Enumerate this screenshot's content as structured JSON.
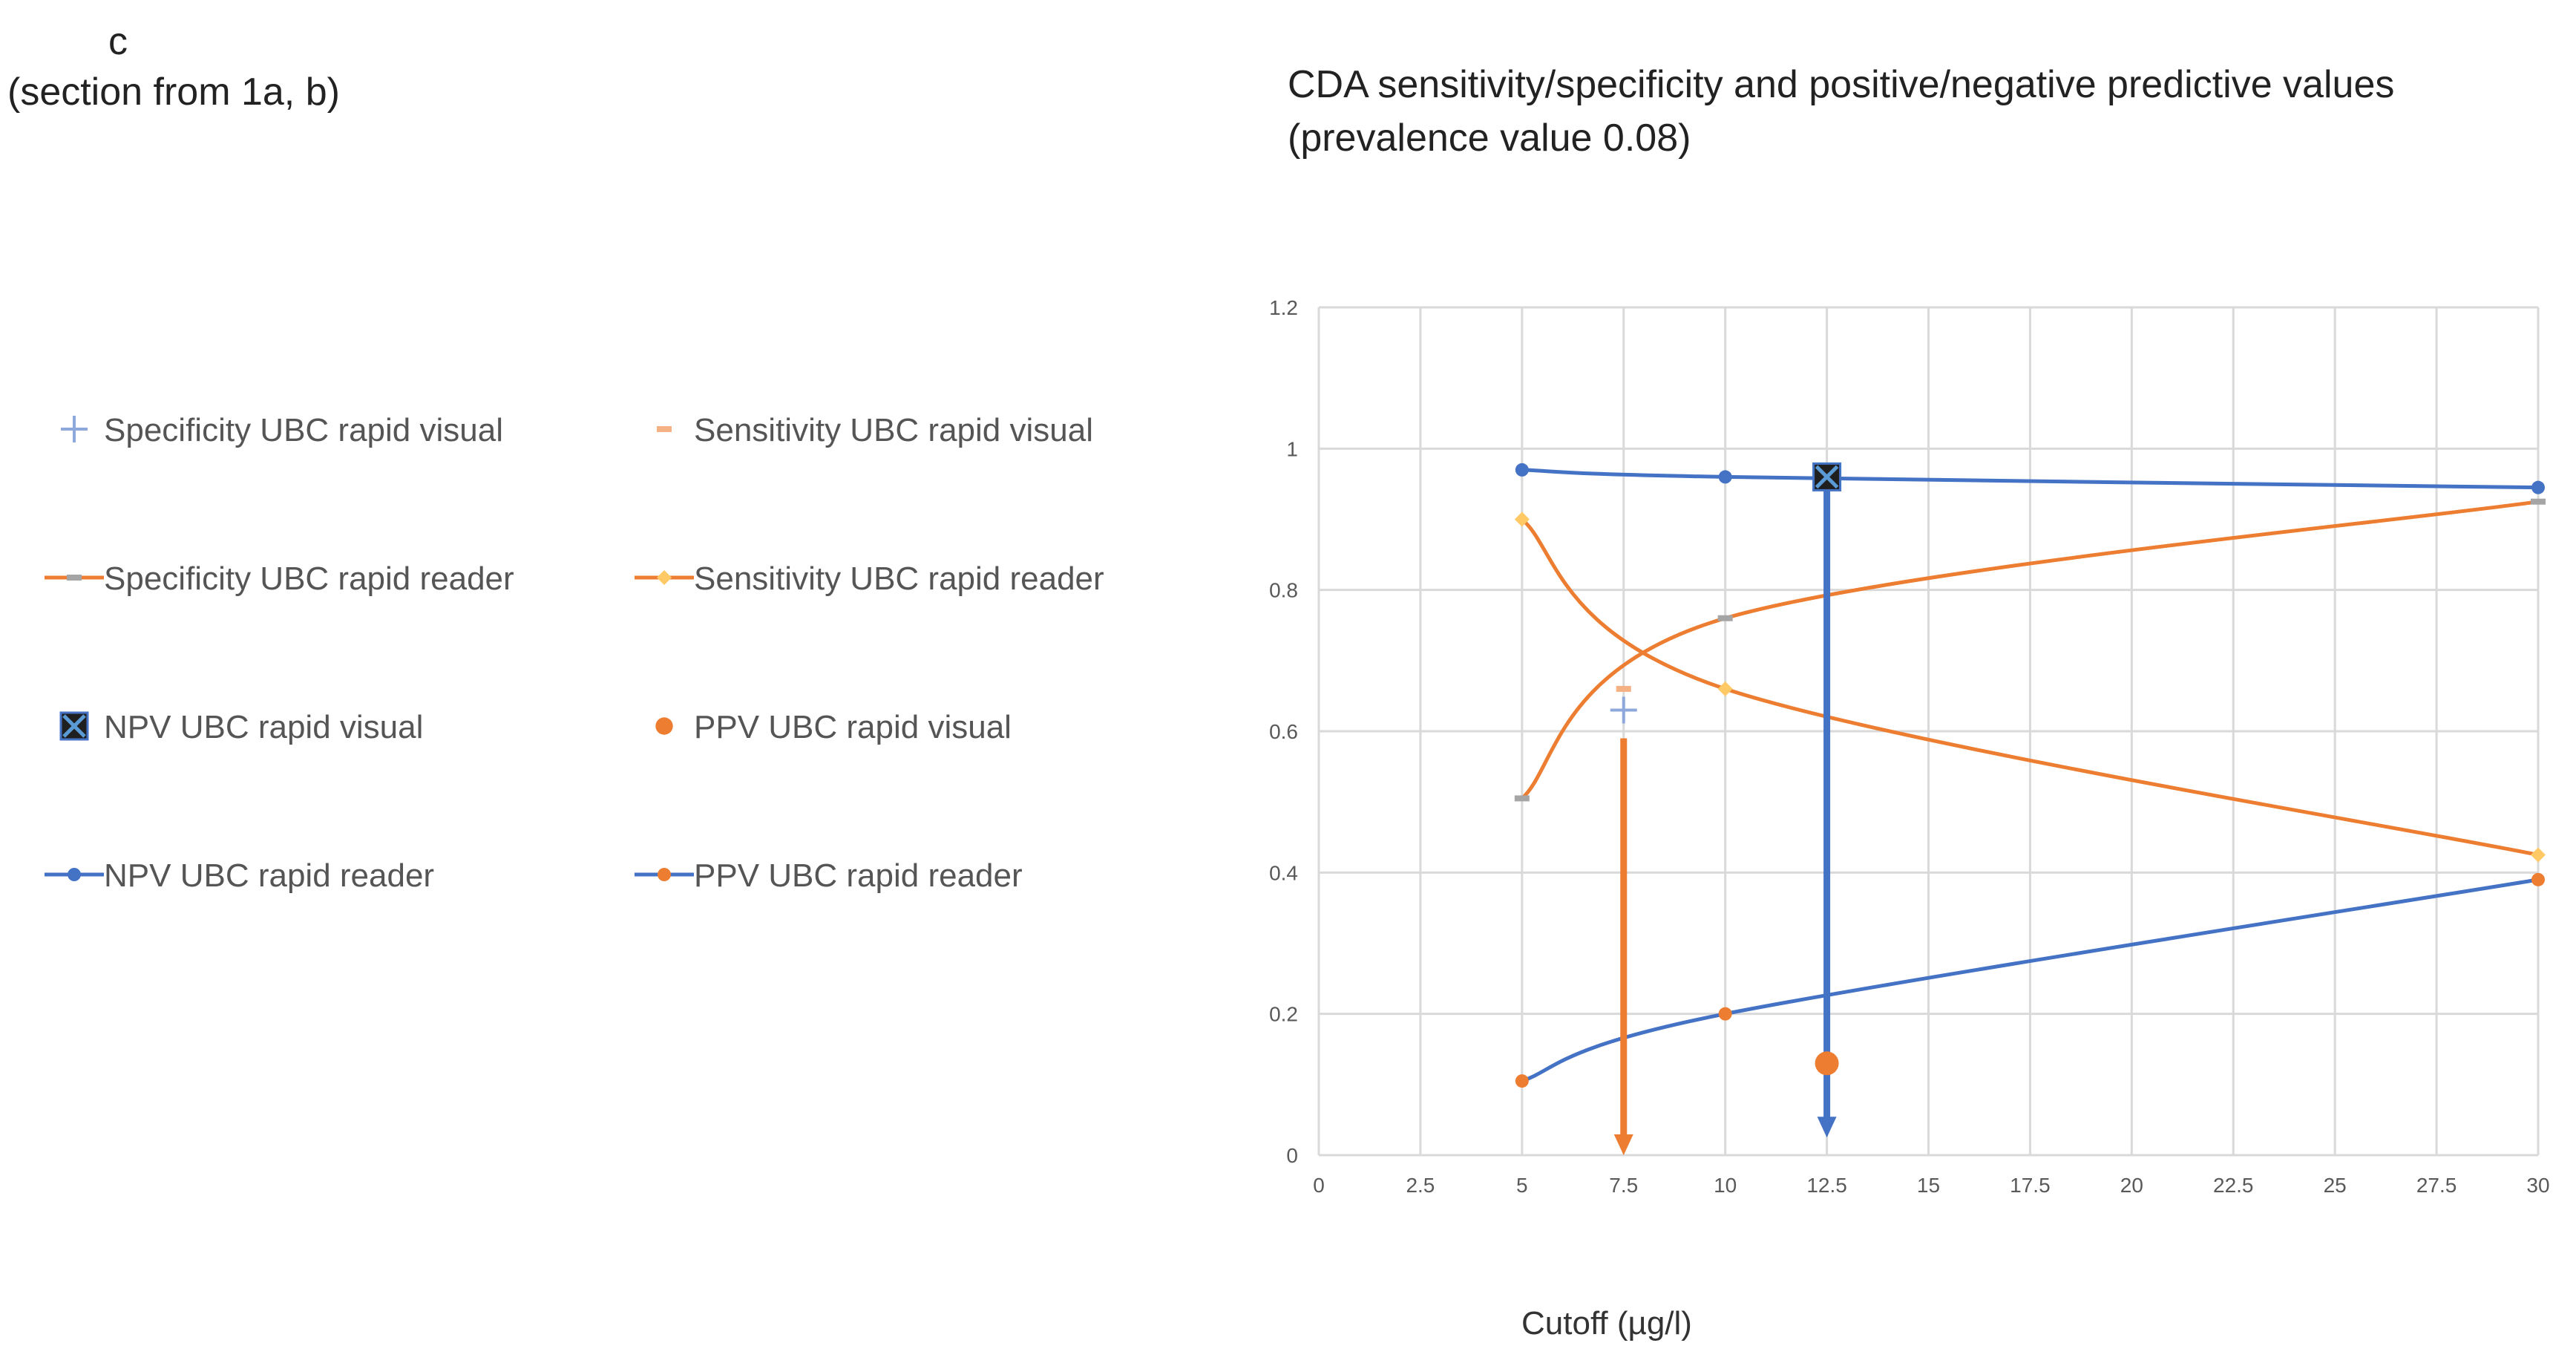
{
  "panel": {
    "letter": "c",
    "caption": "(section from 1a, b)"
  },
  "title": {
    "line1": "CDA sensitivity/specificity and positive/negative predictive values",
    "line2": "(prevalence value 0.08)"
  },
  "chart_data": {
    "type": "line",
    "xlabel": "Cutoff (µg/l)",
    "ylabel": "",
    "xlim": [
      0,
      30
    ],
    "ylim": [
      0,
      1.2
    ],
    "x_ticks": [
      0,
      2.5,
      5,
      7.5,
      10,
      12.5,
      15,
      17.5,
      20,
      22.5,
      25,
      27.5,
      30
    ],
    "x_tick_labels": [
      "0",
      "2.5",
      "5",
      "7.5",
      "10",
      "12.5",
      "15",
      "17.5",
      "20",
      "22.5",
      "25",
      "27.5",
      "30"
    ],
    "y_ticks": [
      0,
      0.2,
      0.4,
      0.6,
      0.8,
      1,
      1.2
    ],
    "y_tick_labels": [
      "0",
      "0.2",
      "0.4",
      "0.6",
      "0.8",
      "1",
      "1.2"
    ],
    "grid": true,
    "legend_position": "left",
    "series": [
      {
        "name": "Specificity UBC rapid visual",
        "marker": "plus",
        "color": "#8FA8DC",
        "line": false,
        "x": [
          7.5
        ],
        "y": [
          0.63
        ]
      },
      {
        "name": "Sensitivity UBC rapid visual",
        "marker": "dash",
        "color": "#F4B183",
        "line": false,
        "x": [
          7.5
        ],
        "y": [
          0.66
        ]
      },
      {
        "name": "Specificity UBC rapid reader",
        "marker": "dash",
        "color": "#A5A5A5",
        "line_color": "#ED7D31",
        "line": true,
        "x": [
          5,
          10,
          30
        ],
        "y": [
          0.505,
          0.76,
          0.925
        ]
      },
      {
        "name": "Sensitivity UBC rapid reader",
        "marker": "diamond",
        "color": "#FFC966",
        "line_color": "#ED7D31",
        "line": true,
        "x": [
          5,
          10,
          30
        ],
        "y": [
          0.9,
          0.66,
          0.425
        ]
      },
      {
        "name": "NPV UBC rapid visual",
        "marker": "xbox",
        "color": "#1F1F1F",
        "line": false,
        "x": [
          12.5
        ],
        "y": [
          0.96
        ]
      },
      {
        "name": "PPV UBC rapid visual",
        "marker": "circle-large",
        "color": "#ED7D31",
        "line": false,
        "x": [
          12.5
        ],
        "y": [
          0.13
        ]
      },
      {
        "name": "NPV UBC rapid reader",
        "marker": "circle",
        "color": "#4472C4",
        "line_color": "#4472C4",
        "line": true,
        "x": [
          5,
          10,
          30
        ],
        "y": [
          0.97,
          0.96,
          0.945
        ]
      },
      {
        "name": "PPV UBC rapid reader",
        "marker": "circle",
        "color": "#ED7D31",
        "line_color": "#4472C4",
        "line": true,
        "x": [
          5,
          10,
          30
        ],
        "y": [
          0.105,
          0.2,
          0.39
        ]
      }
    ],
    "annotations": [
      {
        "type": "arrow",
        "color": "#ED7D31",
        "x": 7.5,
        "y_from": 0.59,
        "y_to": 0.0
      },
      {
        "type": "arrow",
        "color": "#4472C4",
        "x": 12.5,
        "y_from": 0.96,
        "y_to": 0.025
      }
    ]
  }
}
